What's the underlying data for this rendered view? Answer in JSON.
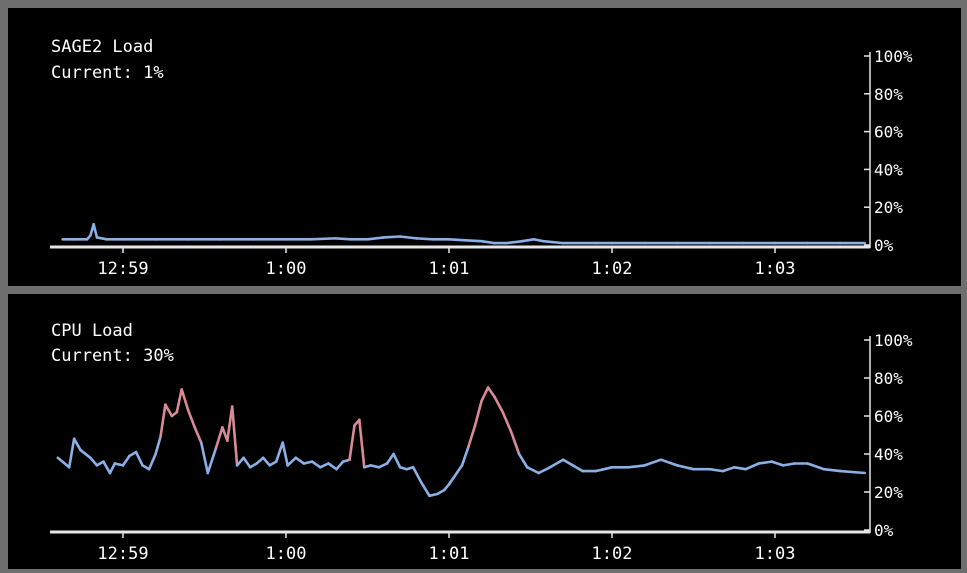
{
  "charts": [
    {
      "title": "SAGE2 Load",
      "current_label": "Current: 1%"
    },
    {
      "title": "CPU Load",
      "current_label": "Current: 30%"
    }
  ],
  "colors": {
    "panel_background": "#000000",
    "frame": "#6e6e6e",
    "axis": "#e6e6e6",
    "text": "#ffffff",
    "line_normal": "#8ab0e6",
    "line_high": "#d98a95"
  },
  "chart_data": [
    {
      "type": "line",
      "title": "SAGE2 Load",
      "subtitle": "Current: 1%",
      "x_ticks": [
        "12:59",
        "1:00",
        "1:01",
        "1:02",
        "1:03"
      ],
      "y_ticks": [
        "0%",
        "20%",
        "40%",
        "60%",
        "80%",
        "100%"
      ],
      "ylim": [
        0,
        100
      ],
      "x_unit": "minutes",
      "x_tick_values": [
        0,
        1,
        2,
        3,
        4
      ],
      "xlim": [
        -0.4,
        4.55
      ],
      "high_threshold": 50,
      "grid": false,
      "points": [
        [
          -0.37,
          3
        ],
        [
          -0.3,
          3
        ],
        [
          -0.22,
          3
        ],
        [
          -0.2,
          5
        ],
        [
          -0.18,
          11
        ],
        [
          -0.16,
          4
        ],
        [
          -0.1,
          3
        ],
        [
          0.0,
          3
        ],
        [
          0.2,
          3
        ],
        [
          0.4,
          3
        ],
        [
          0.6,
          3
        ],
        [
          0.8,
          3
        ],
        [
          1.0,
          3
        ],
        [
          1.15,
          3
        ],
        [
          1.3,
          3.5
        ],
        [
          1.4,
          3
        ],
        [
          1.5,
          3
        ],
        [
          1.6,
          4
        ],
        [
          1.7,
          4.5
        ],
        [
          1.8,
          3.5
        ],
        [
          1.9,
          3
        ],
        [
          2.0,
          3
        ],
        [
          2.1,
          2.5
        ],
        [
          2.2,
          2
        ],
        [
          2.28,
          1
        ],
        [
          2.35,
          1
        ],
        [
          2.45,
          2
        ],
        [
          2.52,
          3
        ],
        [
          2.58,
          2
        ],
        [
          2.7,
          1
        ],
        [
          2.9,
          1
        ],
        [
          3.0,
          1
        ],
        [
          3.2,
          1
        ],
        [
          3.4,
          1
        ],
        [
          3.6,
          1
        ],
        [
          3.8,
          1
        ],
        [
          4.0,
          1
        ],
        [
          4.2,
          1
        ],
        [
          4.4,
          1
        ],
        [
          4.55,
          1
        ]
      ]
    },
    {
      "type": "line",
      "title": "CPU Load",
      "subtitle": "Current: 30%",
      "x_ticks": [
        "12:59",
        "1:00",
        "1:01",
        "1:02",
        "1:03"
      ],
      "y_ticks": [
        "0%",
        "20%",
        "40%",
        "60%",
        "80%",
        "100%"
      ],
      "ylim": [
        0,
        100
      ],
      "x_unit": "minutes",
      "x_tick_values": [
        0,
        1,
        2,
        3,
        4
      ],
      "xlim": [
        -0.4,
        4.55
      ],
      "high_threshold": 50,
      "grid": false,
      "points": [
        [
          -0.4,
          38
        ],
        [
          -0.33,
          33
        ],
        [
          -0.3,
          48
        ],
        [
          -0.26,
          42
        ],
        [
          -0.2,
          38
        ],
        [
          -0.16,
          34
        ],
        [
          -0.12,
          36
        ],
        [
          -0.08,
          30
        ],
        [
          -0.05,
          35
        ],
        [
          0.0,
          34
        ],
        [
          0.04,
          39
        ],
        [
          0.08,
          41
        ],
        [
          0.12,
          34
        ],
        [
          0.16,
          32
        ],
        [
          0.2,
          40
        ],
        [
          0.23,
          49
        ],
        [
          0.26,
          66
        ],
        [
          0.3,
          60
        ],
        [
          0.33,
          62
        ],
        [
          0.36,
          74
        ],
        [
          0.4,
          63
        ],
        [
          0.44,
          54
        ],
        [
          0.48,
          46
        ],
        [
          0.52,
          30
        ],
        [
          0.57,
          43
        ],
        [
          0.61,
          54
        ],
        [
          0.64,
          47
        ],
        [
          0.67,
          65
        ],
        [
          0.7,
          34
        ],
        [
          0.74,
          38
        ],
        [
          0.78,
          33
        ],
        [
          0.82,
          35
        ],
        [
          0.86,
          38
        ],
        [
          0.9,
          34
        ],
        [
          0.94,
          36
        ],
        [
          0.98,
          46
        ],
        [
          1.01,
          34
        ],
        [
          1.06,
          38
        ],
        [
          1.11,
          35
        ],
        [
          1.16,
          36
        ],
        [
          1.21,
          33
        ],
        [
          1.26,
          35
        ],
        [
          1.31,
          32
        ],
        [
          1.35,
          36
        ],
        [
          1.39,
          37
        ],
        [
          1.42,
          55
        ],
        [
          1.45,
          58
        ],
        [
          1.48,
          33
        ],
        [
          1.52,
          34
        ],
        [
          1.57,
          33
        ],
        [
          1.62,
          35
        ],
        [
          1.66,
          40
        ],
        [
          1.7,
          33
        ],
        [
          1.74,
          32
        ],
        [
          1.78,
          33
        ],
        [
          1.83,
          25
        ],
        [
          1.88,
          18
        ],
        [
          1.93,
          19
        ],
        [
          1.97,
          21
        ],
        [
          2.0,
          24
        ],
        [
          2.08,
          34
        ],
        [
          2.12,
          44
        ],
        [
          2.16,
          55
        ],
        [
          2.2,
          68
        ],
        [
          2.24,
          75
        ],
        [
          2.28,
          70
        ],
        [
          2.33,
          62
        ],
        [
          2.38,
          52
        ],
        [
          2.43,
          40
        ],
        [
          2.48,
          33
        ],
        [
          2.55,
          30
        ],
        [
          2.62,
          33
        ],
        [
          2.7,
          37
        ],
        [
          2.76,
          34
        ],
        [
          2.82,
          31
        ],
        [
          2.9,
          31
        ],
        [
          3.0,
          33
        ],
        [
          3.1,
          33
        ],
        [
          3.2,
          34
        ],
        [
          3.3,
          37
        ],
        [
          3.4,
          34
        ],
        [
          3.5,
          32
        ],
        [
          3.6,
          32
        ],
        [
          3.68,
          31
        ],
        [
          3.75,
          33
        ],
        [
          3.82,
          32
        ],
        [
          3.9,
          35
        ],
        [
          3.98,
          36
        ],
        [
          4.05,
          34
        ],
        [
          4.12,
          35
        ],
        [
          4.2,
          35
        ],
        [
          4.3,
          32
        ],
        [
          4.4,
          31
        ],
        [
          4.55,
          30
        ]
      ]
    }
  ]
}
